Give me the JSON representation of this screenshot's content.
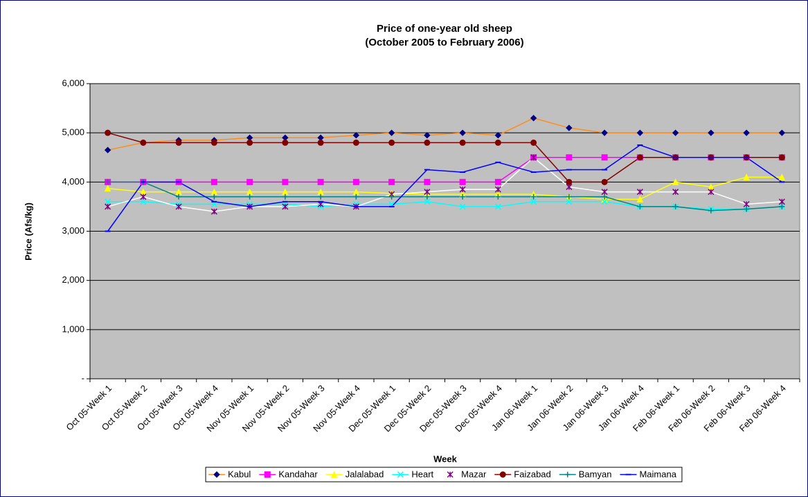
{
  "chart_data": {
    "type": "line",
    "title": "Price of one-year old sheep",
    "subtitle": "(October 2005 to February 2006)",
    "x_label": "Week",
    "y_label": "Price (Afs/kg)",
    "categories": [
      "Oct 05-Week 1",
      "Oct 05-Week 2",
      "Oct 05-Week 3",
      "Oct 05-Week 4",
      "Nov 05-Week 1",
      "Nov 05-Week 2",
      "Nov 05-Week 3",
      "Nov 05-Week 4",
      "Dec 05-Week 1",
      "Dec 05-Week 2",
      "Dec 05-Week 3",
      "Dec 05-Week 4",
      "Jan 06-Week 1",
      "Jan 06-Week 2",
      "Jan 06-Week 3",
      "Jan 06-Week 4",
      "Feb 06-Week 1",
      "Feb 06-Week 2",
      "Feb 06-Week 3",
      "Feb 06-Week 4"
    ],
    "ylim": [
      0,
      6000
    ],
    "yticks": [
      {
        "value": 0,
        "label": "-"
      },
      {
        "value": 1000,
        "label": "1,000"
      },
      {
        "value": 2000,
        "label": "2,000"
      },
      {
        "value": 3000,
        "label": "3,000"
      },
      {
        "value": 4000,
        "label": "4,000"
      },
      {
        "value": 5000,
        "label": "5,000"
      },
      {
        "value": 6000,
        "label": "6,000"
      }
    ],
    "grid": true,
    "legend": "bottom",
    "series": [
      {
        "name": "Kabul",
        "color": "#000080",
        "line_color": "#ff8c1a",
        "marker": "diamond",
        "values": [
          4650,
          4800,
          4850,
          4850,
          4900,
          4900,
          4900,
          4950,
          5000,
          4950,
          5000,
          4950,
          5300,
          5100,
          5000,
          5000,
          5000,
          5000,
          5000,
          5000
        ]
      },
      {
        "name": "Kandahar",
        "color": "#ff00ff",
        "line_color": "#ff00ff",
        "marker": "square",
        "values": [
          4000,
          4000,
          4000,
          4000,
          4000,
          4000,
          4000,
          4000,
          4000,
          4000,
          4000,
          4000,
          4500,
          4500,
          4500,
          4500,
          4500,
          4500,
          4500,
          4500
        ]
      },
      {
        "name": "Jalalabad",
        "color": "#ffff00",
        "line_color": "#ffff00",
        "marker": "triangle",
        "values": [
          3870,
          3800,
          3800,
          3800,
          3800,
          3800,
          3800,
          3800,
          3770,
          3750,
          3750,
          3750,
          3750,
          3700,
          3650,
          3650,
          4000,
          3900,
          4100,
          4100
        ]
      },
      {
        "name": "Heart",
        "color": "#00ffff",
        "line_color": "#00ffff",
        "marker": "x",
        "values": [
          3600,
          3600,
          3550,
          3550,
          3550,
          3550,
          3500,
          3550,
          3550,
          3600,
          3500,
          3500,
          3600,
          3600,
          3600,
          3500,
          3500,
          3450,
          3450,
          3500
        ]
      },
      {
        "name": "Mazar",
        "color": "#800080",
        "line_color": "#ffffff",
        "marker": "star",
        "values": [
          3500,
          3700,
          3500,
          3400,
          3500,
          3500,
          3550,
          3500,
          3750,
          3800,
          3850,
          3850,
          4500,
          3900,
          3800,
          3800,
          3800,
          3800,
          3550,
          3600
        ]
      },
      {
        "name": "Faizabad",
        "color": "#800000",
        "line_color": "#800000",
        "marker": "circle",
        "values": [
          5000,
          4800,
          4800,
          4800,
          4800,
          4800,
          4800,
          4800,
          4800,
          4800,
          4800,
          4800,
          4800,
          4000,
          4000,
          4500,
          4500,
          4500,
          4500,
          4500
        ]
      },
      {
        "name": "Bamyan",
        "color": "#008080",
        "line_color": "#008080",
        "marker": "plus",
        "values": [
          4000,
          4000,
          3700,
          3700,
          3700,
          3700,
          3700,
          3700,
          3700,
          3700,
          3700,
          3700,
          3700,
          3700,
          3700,
          3500,
          3500,
          3420,
          3450,
          3500
        ]
      },
      {
        "name": "Maimana",
        "color": "#0000ff",
        "line_color": "#0000ff",
        "marker": "dash",
        "values": [
          3000,
          4000,
          4000,
          3600,
          3500,
          3600,
          3600,
          3500,
          3500,
          4250,
          4200,
          4400,
          4200,
          4250,
          4250,
          4750,
          4500,
          4500,
          4500,
          4000
        ]
      }
    ]
  }
}
